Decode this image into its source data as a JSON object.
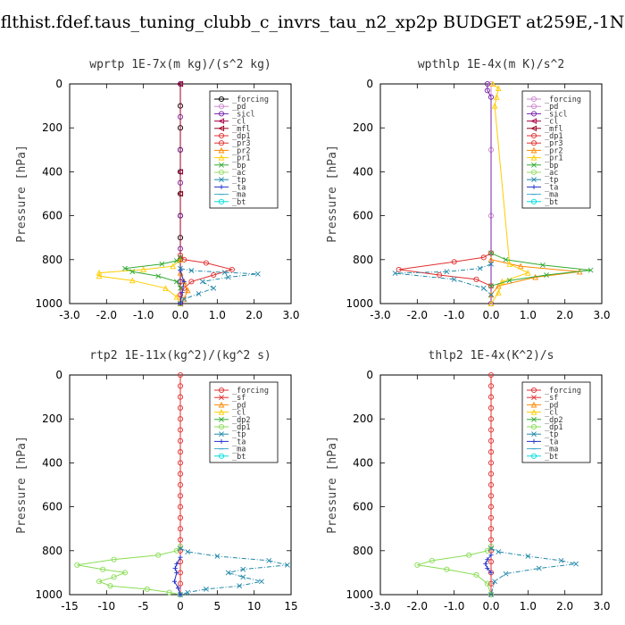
{
  "title": "flthist.fdef.taus_tuning_clubb_c_invrs_tau_n2_xp2p  BUDGET at259E,-1N",
  "chart_data": [
    {
      "type": "line",
      "title": "wprtp   1E-7x(m kg)/(s^2 kg)",
      "ylabel": "Pressure [hPa]",
      "xlim": [
        -3.0,
        3.0
      ],
      "xticks": [
        "-3.0",
        "-2.0",
        "-1.0",
        "0.0",
        "1.0",
        "2.0",
        "3.0"
      ],
      "ylim": [
        0,
        1000
      ],
      "yticks": [
        "0",
        "200",
        "400",
        "600",
        "800",
        "1000"
      ],
      "series": [
        {
          "name": "_forcing",
          "color": "#000000",
          "marker": "o",
          "x": [
            0,
            0,
            0,
            0,
            0,
            0,
            0,
            0,
            0,
            0,
            0
          ],
          "y": [
            0,
            100,
            200,
            300,
            400,
            500,
            600,
            700,
            800,
            900,
            1000
          ]
        },
        {
          "name": "_pd",
          "color": "#cc88cc",
          "marker": "o",
          "x": [],
          "y": []
        },
        {
          "name": "_sicl",
          "color": "#7722aa",
          "marker": "o",
          "x": [
            0,
            0,
            0,
            0,
            0,
            0,
            0,
            0
          ],
          "y": [
            0,
            150,
            300,
            450,
            600,
            750,
            900,
            1000
          ]
        },
        {
          "name": "_cl",
          "color": "#aa0044",
          "marker": "<",
          "x": [
            0,
            0,
            0,
            0
          ],
          "y": [
            0,
            400,
            800,
            1000
          ]
        },
        {
          "name": "_mfl",
          "color": "#990022",
          "marker": "<",
          "x": [
            0,
            0,
            0
          ],
          "y": [
            0,
            500,
            1000
          ]
        },
        {
          "name": "_dp1",
          "color": "#e03030",
          "marker": "o",
          "x": [
            0,
            0.1,
            0.7,
            1.4,
            0.9,
            0.3,
            0.1,
            0
          ],
          "y": [
            780,
            800,
            815,
            845,
            870,
            900,
            930,
            960
          ]
        },
        {
          "name": "_pr3",
          "color": "#e03030",
          "marker": "o",
          "x": [],
          "y": []
        },
        {
          "name": "_pr2",
          "color": "#ff8800",
          "marker": "^",
          "x": [
            0,
            0.1,
            0.2,
            0.1,
            0
          ],
          "y": [
            860,
            900,
            940,
            980,
            1000
          ]
        },
        {
          "name": "_pr1",
          "color": "#ffcc00",
          "marker": "^",
          "x": [
            0,
            -0.2,
            -1.0,
            -2.2,
            -2.2,
            -1.3,
            -0.4,
            -0.1,
            0
          ],
          "y": [
            800,
            830,
            845,
            860,
            875,
            895,
            930,
            970,
            1000
          ]
        },
        {
          "name": "_bp",
          "color": "#33aa33",
          "marker": "x",
          "x": [
            0,
            -0.1,
            -0.5,
            -1.5,
            -1.3,
            -0.6,
            -0.1,
            0
          ],
          "y": [
            790,
            805,
            820,
            840,
            855,
            875,
            900,
            930
          ]
        },
        {
          "name": "_ac",
          "color": "#99dd66",
          "marker": "o",
          "x": [],
          "y": []
        },
        {
          "name": "_tp",
          "color": "#2288aa",
          "marker": "x",
          "x": [
            0,
            0.3,
            1.2,
            2.1,
            1.3,
            0.6,
            0.9,
            0.5,
            0.1,
            0
          ],
          "y": [
            840,
            850,
            858,
            865,
            880,
            900,
            930,
            955,
            980,
            1000
          ]
        },
        {
          "name": "_ta",
          "color": "#2233cc",
          "marker": "+",
          "x": [
            0,
            0.1,
            0.05,
            0
          ],
          "y": [
            850,
            900,
            950,
            1000
          ]
        },
        {
          "name": "_ma",
          "color": "#44aacc",
          "marker": "-",
          "x": [],
          "y": []
        },
        {
          "name": "_bt",
          "color": "#00dddd",
          "marker": "o",
          "x": [],
          "y": []
        }
      ]
    },
    {
      "type": "line",
      "title": "wpthlp   1E-4x(m K)/s^2",
      "ylabel": "Pressure [hPa]",
      "xlim": [
        -3.0,
        3.0
      ],
      "xticks": [
        "-3.0",
        "-2.0",
        "-1.0",
        "0.0",
        "1.0",
        "2.0",
        "3.0"
      ],
      "ylim": [
        0,
        1000
      ],
      "yticks": [
        "0",
        "200",
        "400",
        "600",
        "800",
        "1000"
      ],
      "series": [
        {
          "name": "_forcing",
          "color": "#cc88cc",
          "marker": "o",
          "x": [
            0,
            0,
            0,
            0
          ],
          "y": [
            0,
            300,
            600,
            1000
          ]
        },
        {
          "name": "_pd",
          "color": "#cc88cc",
          "marker": "o",
          "x": [],
          "y": []
        },
        {
          "name": "_sicl",
          "color": "#7722aa",
          "marker": "o",
          "x": [
            -0.1,
            -0.1,
            0,
            0
          ],
          "y": [
            0,
            30,
            60,
            1000
          ]
        },
        {
          "name": "_cl",
          "color": "#aa0044",
          "marker": "<",
          "x": [],
          "y": []
        },
        {
          "name": "_mfl",
          "color": "#990022",
          "marker": "<",
          "x": [],
          "y": []
        },
        {
          "name": "_dp1",
          "color": "#e03030",
          "marker": "o",
          "x": [
            0,
            -0.2,
            -1.0,
            -2.5,
            -1.4,
            -0.4,
            0
          ],
          "y": [
            770,
            790,
            810,
            845,
            870,
            890,
            920
          ]
        },
        {
          "name": "_pr3",
          "color": "#e03030",
          "marker": "o",
          "x": [],
          "y": []
        },
        {
          "name": "_pr2",
          "color": "#ff8800",
          "marker": "^",
          "x": [
            0,
            0.8,
            2.4,
            1.2,
            0.2,
            0
          ],
          "y": [
            800,
            830,
            855,
            880,
            920,
            960
          ]
        },
        {
          "name": "_pr1",
          "color": "#ffcc00",
          "marker": "^",
          "x": [
            0.05,
            0.2,
            0.15,
            0.1,
            0.5,
            1.0,
            0.3,
            0.2,
            0
          ],
          "y": [
            0,
            20,
            60,
            100,
            820,
            860,
            900,
            950,
            1000
          ]
        },
        {
          "name": "_bp",
          "color": "#33aa33",
          "marker": "x",
          "x": [
            0,
            0.4,
            1.4,
            2.7,
            1.5,
            0.5,
            0
          ],
          "y": [
            770,
            800,
            825,
            848,
            870,
            895,
            920
          ]
        },
        {
          "name": "_ac",
          "color": "#99dd66",
          "marker": "o",
          "x": [],
          "y": []
        },
        {
          "name": "_tp",
          "color": "#2288aa",
          "marker": "x",
          "x": [
            0,
            -0.3,
            -1.2,
            -2.6,
            -1.0,
            -0.2,
            0
          ],
          "y": [
            820,
            840,
            855,
            862,
            890,
            930,
            960
          ]
        },
        {
          "name": "_ta",
          "color": "#2233cc",
          "marker": "+",
          "x": [],
          "y": []
        },
        {
          "name": "_ma",
          "color": "#44aacc",
          "marker": "-",
          "x": [],
          "y": []
        },
        {
          "name": "_bt",
          "color": "#00dddd",
          "marker": "o",
          "x": [],
          "y": []
        }
      ]
    },
    {
      "type": "line",
      "title": "rtp2   1E-11x(kg^2)/(kg^2 s)",
      "ylabel": "Pressure [hPa]",
      "xlim": [
        -15,
        15
      ],
      "xticks": [
        "-15",
        "-10",
        "-5",
        "0",
        "5",
        "10",
        "15"
      ],
      "ylim": [
        0,
        1000
      ],
      "yticks": [
        "0",
        "200",
        "400",
        "600",
        "800",
        "1000"
      ],
      "series": [
        {
          "name": "_forcing",
          "color": "#e03030",
          "marker": "o",
          "x": [
            0,
            0,
            0,
            0,
            0,
            0,
            0,
            0,
            0,
            0,
            0,
            0,
            0,
            0,
            0,
            0,
            0,
            0,
            0,
            0,
            0
          ],
          "y": [
            0,
            50,
            100,
            150,
            200,
            250,
            300,
            350,
            400,
            450,
            500,
            550,
            600,
            650,
            700,
            750,
            800,
            850,
            900,
            950,
            1000
          ]
        },
        {
          "name": "_sf",
          "color": "#e03030",
          "marker": "x",
          "x": [],
          "y": []
        },
        {
          "name": "_pd",
          "color": "#ff8800",
          "marker": "^",
          "x": [],
          "y": []
        },
        {
          "name": "_cl",
          "color": "#ffcc00",
          "marker": "^",
          "x": [],
          "y": []
        },
        {
          "name": "_dp2",
          "color": "#33aa33",
          "marker": "x",
          "x": [],
          "y": []
        },
        {
          "name": "_dp1",
          "color": "#88dd55",
          "marker": "o",
          "x": [
            0,
            -0.5,
            -3.0,
            -9.0,
            -14.0,
            -10.5,
            -7.5,
            -9.0,
            -11.0,
            -9.5,
            -4.5,
            -1.5,
            0
          ],
          "y": [
            780,
            800,
            820,
            840,
            865,
            885,
            900,
            920,
            940,
            960,
            975,
            990,
            1000
          ]
        },
        {
          "name": "_tp",
          "color": "#2288aa",
          "marker": "x",
          "x": [
            0,
            1.0,
            5.0,
            12.0,
            14.5,
            8.5,
            6.5,
            8.5,
            11.0,
            8.0,
            3.5,
            1.0,
            0
          ],
          "y": [
            790,
            805,
            825,
            845,
            865,
            885,
            900,
            920,
            940,
            960,
            975,
            990,
            1000
          ]
        },
        {
          "name": "_ta",
          "color": "#2233cc",
          "marker": "+",
          "x": [
            0,
            -0.5,
            -0.7,
            -0.5,
            -0.8,
            -0.3,
            0
          ],
          "y": [
            830,
            860,
            880,
            900,
            940,
            970,
            1000
          ]
        },
        {
          "name": "_ma",
          "color": "#44aacc",
          "marker": "-",
          "x": [],
          "y": []
        },
        {
          "name": "_bt",
          "color": "#00dddd",
          "marker": "o",
          "x": [],
          "y": []
        }
      ]
    },
    {
      "type": "line",
      "title": "thlp2   1E-4x(K^2)/s",
      "ylabel": "Pressure [hPa]",
      "xlim": [
        -3.0,
        3.0
      ],
      "xticks": [
        "-3.0",
        "-2.0",
        "-1.0",
        "0.0",
        "1.0",
        "2.0",
        "3.0"
      ],
      "ylim": [
        0,
        1000
      ],
      "yticks": [
        "0",
        "200",
        "400",
        "600",
        "800",
        "1000"
      ],
      "series": [
        {
          "name": "_forcing",
          "color": "#e03030",
          "marker": "o",
          "x": [
            0,
            0,
            0,
            0,
            0,
            0,
            0,
            0,
            0,
            0,
            0,
            0,
            0,
            0,
            0,
            0,
            0,
            0,
            0,
            0,
            0
          ],
          "y": [
            0,
            50,
            100,
            150,
            200,
            250,
            300,
            350,
            400,
            450,
            500,
            550,
            600,
            650,
            700,
            750,
            800,
            850,
            900,
            950,
            1000
          ]
        },
        {
          "name": "_sf",
          "color": "#e03030",
          "marker": "x",
          "x": [],
          "y": []
        },
        {
          "name": "_pd",
          "color": "#ff8800",
          "marker": "^",
          "x": [],
          "y": []
        },
        {
          "name": "_cl",
          "color": "#ffcc00",
          "marker": "^",
          "x": [],
          "y": []
        },
        {
          "name": "_dp2",
          "color": "#33aa33",
          "marker": "x",
          "x": [],
          "y": []
        },
        {
          "name": "_dp1",
          "color": "#88dd55",
          "marker": "o",
          "x": [
            0,
            -0.1,
            -0.6,
            -1.6,
            -2.0,
            -1.2,
            -0.4,
            -0.1,
            0
          ],
          "y": [
            780,
            800,
            820,
            845,
            865,
            885,
            910,
            950,
            1000
          ]
        },
        {
          "name": "_tp",
          "color": "#2288aa",
          "marker": "x",
          "x": [
            0,
            0.2,
            1.0,
            1.9,
            2.3,
            1.3,
            0.4,
            0.1,
            0
          ],
          "y": [
            790,
            805,
            825,
            845,
            860,
            880,
            905,
            940,
            1000
          ]
        },
        {
          "name": "_ta",
          "color": "#2233cc",
          "marker": "+",
          "x": [
            0,
            -0.1,
            -0.15,
            -0.1,
            0
          ],
          "y": [
            820,
            840,
            860,
            880,
            900
          ]
        },
        {
          "name": "_ma",
          "color": "#44aacc",
          "marker": "-",
          "x": [],
          "y": []
        },
        {
          "name": "_bt",
          "color": "#00dddd",
          "marker": "o",
          "x": [],
          "y": []
        }
      ]
    }
  ]
}
